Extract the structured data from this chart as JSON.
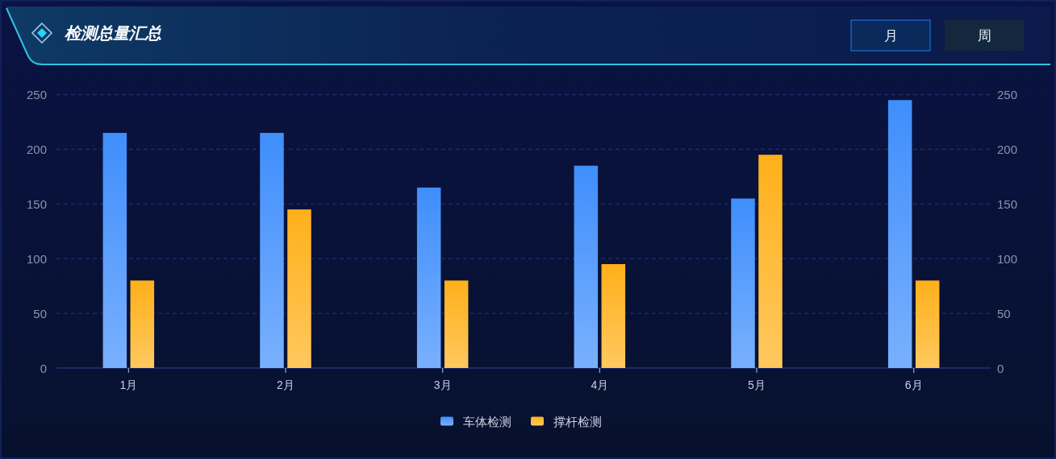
{
  "chart_data": {
    "type": "bar",
    "title": "检测总量汇总",
    "annotations": [
      "月",
      "周"
    ],
    "categories": [
      "1月",
      "2月",
      "3月",
      "4月",
      "5月",
      "6月"
    ],
    "series": [
      {
        "name": "车体检测",
        "color": "#3f8efc",
        "values": [
          215,
          215,
          165,
          185,
          155,
          245
        ]
      },
      {
        "name": "撑杆检测",
        "color": "#ffb01a",
        "values": [
          80,
          145,
          80,
          95,
          195,
          80
        ]
      }
    ],
    "ylim": [
      0,
      250
    ],
    "yticks": [
      0,
      50,
      100,
      150,
      200,
      250
    ],
    "y2lim": [
      0,
      250
    ],
    "y2ticks": [
      0,
      50,
      100,
      150,
      200,
      250
    ],
    "grid": "y",
    "legend": "bottom"
  }
}
